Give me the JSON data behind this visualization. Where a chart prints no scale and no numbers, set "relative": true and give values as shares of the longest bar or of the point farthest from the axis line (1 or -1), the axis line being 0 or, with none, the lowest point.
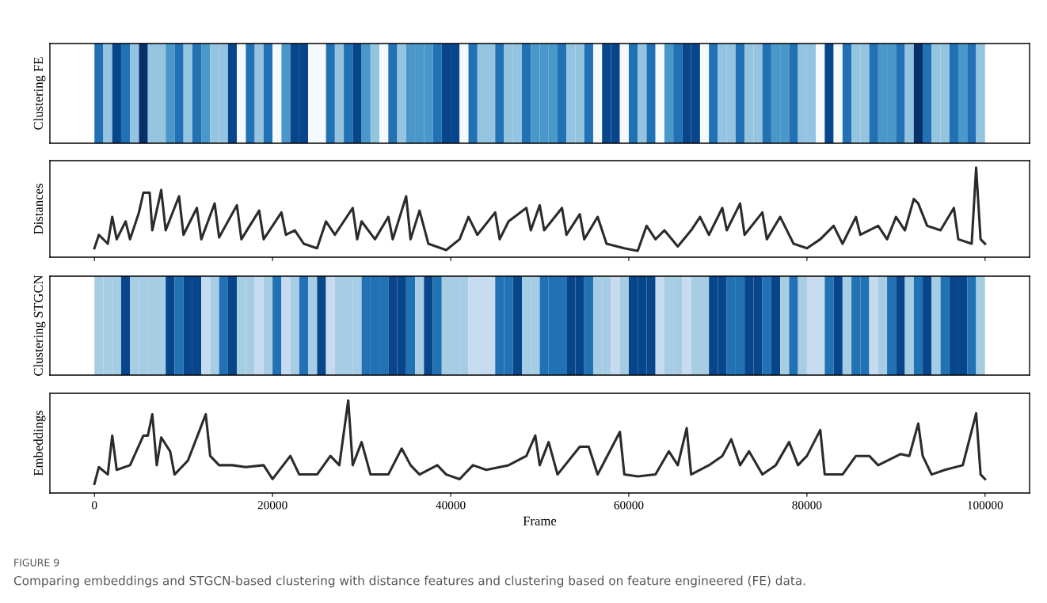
{
  "chart_data": [
    {
      "type": "bar",
      "ylabel": "Clustering FE",
      "relative": true,
      "tick_labels": false,
      "categories": [
        null,
        null,
        null,
        null,
        null,
        null,
        null,
        null,
        null,
        null,
        null,
        null,
        null,
        null,
        null,
        null,
        null,
        null,
        null,
        null,
        null,
        null,
        null,
        null,
        null,
        null,
        null,
        null,
        null,
        null,
        null,
        null,
        null,
        null,
        null,
        null,
        null,
        null,
        null,
        null,
        null,
        null,
        null,
        null,
        null,
        null,
        null,
        null,
        null,
        null,
        null,
        null,
        null,
        null,
        null,
        null,
        null,
        null,
        null,
        null,
        null,
        null,
        null,
        null,
        null,
        null,
        null,
        null,
        null,
        null,
        null,
        null,
        null,
        null,
        null,
        null,
        null,
        null,
        null,
        null,
        null,
        null,
        null,
        null,
        null,
        null,
        null,
        null,
        null,
        null,
        null,
        null,
        null,
        null,
        null,
        null,
        null,
        null,
        null,
        null
      ],
      "values": [
        1,
        1,
        1,
        1,
        1,
        1,
        1,
        1,
        1,
        1,
        1,
        1,
        1,
        1,
        1,
        1,
        1,
        1,
        1,
        1,
        1,
        1,
        1,
        1,
        1,
        1,
        1,
        1,
        1,
        1,
        1,
        1,
        1,
        1,
        1,
        1,
        1,
        1,
        1,
        1,
        1,
        1,
        1,
        1,
        1,
        1,
        1,
        1,
        1,
        1,
        1,
        1,
        1,
        1,
        1,
        1,
        1,
        1,
        1,
        1,
        1,
        1,
        1,
        1,
        1,
        1,
        1,
        1,
        1,
        1,
        1,
        1,
        1,
        1,
        1,
        1,
        1,
        1,
        1,
        1,
        1,
        1,
        1,
        1,
        1,
        1,
        1,
        1,
        1,
        1,
        1,
        1,
        1,
        1,
        1,
        1,
        1,
        1,
        1,
        1
      ],
      "colors": [
        "#2171b5",
        "#94c4df",
        "#08468c",
        "#2171b5",
        "#94c4df",
        "#08306b",
        "#94c4df",
        "#94c4df",
        "#4a98c9",
        "#2171b5",
        "#94c4df",
        "#2171b5",
        "#4a98c9",
        "#94c4df",
        "#94c4df",
        "#08468c",
        "#f4f9fd",
        "#2171b5",
        "#94c4df",
        "#2171b5",
        "#f4f9fd",
        "#4a98c9",
        "#08468c",
        "#08468c",
        "#f4f9fd",
        "#f4f9fd",
        "#2171b5",
        "#94c4df",
        "#2171b5",
        "#08468c",
        "#4a98c9",
        "#94c4df",
        "#f4f9fd",
        "#2171b5",
        "#94c4df",
        "#4a98c9",
        "#4a98c9",
        "#4a98c9",
        "#2171b5",
        "#08468c",
        "#08468c",
        "#f4f9fd",
        "#2171b5",
        "#94c4df",
        "#94c4df",
        "#2171b5",
        "#94c4df",
        "#94c4df",
        "#2171b5",
        "#4a98c9",
        "#4a98c9",
        "#4a98c9",
        "#2171b5",
        "#94c4df",
        "#94c4df",
        "#2171b5",
        "#f4f9fd",
        "#08468c",
        "#08468c",
        "#f4f9fd",
        "#2171b5",
        "#94c4df",
        "#2171b5",
        "#f4f9fd",
        "#4a98c9",
        "#2171b5",
        "#08468c",
        "#08468c",
        "#f4f9fd",
        "#2171b5",
        "#94c4df",
        "#94c4df",
        "#2171b5",
        "#94c4df",
        "#94c4df",
        "#2171b5",
        "#4a98c9",
        "#4a98c9",
        "#2171b5",
        "#94c4df",
        "#94c4df",
        "#f4f9fd",
        "#08468c",
        "#f4f9fd",
        "#2171b5",
        "#94c4df",
        "#94c4df",
        "#2171b5",
        "#4a98c9",
        "#4a98c9",
        "#2171b5",
        "#94c4df",
        "#08306b",
        "#2171b5",
        "#94c4df",
        "#94c4df",
        "#2171b5",
        "#4a98c9",
        "#2171b5",
        "#94c4df"
      ]
    },
    {
      "type": "line",
      "ylabel": "Distances",
      "relative": true,
      "xlim": [
        -5000,
        105000
      ],
      "xticks": [
        0,
        20000,
        40000,
        60000,
        80000,
        100000
      ],
      "tick_labels": false,
      "series": [
        {
          "color": "#2b2b2b",
          "x": [
            0,
            500,
            1500,
            2000,
            2500,
            3500,
            4000,
            5000,
            5500,
            6200,
            6500,
            7500,
            8000,
            9500,
            10000,
            11500,
            12000,
            13500,
            14000,
            16000,
            16500,
            18500,
            19000,
            21000,
            21500,
            22500,
            23500,
            25000,
            26000,
            27000,
            29000,
            29500,
            30000,
            31500,
            33000,
            33500,
            35000,
            35500,
            36500,
            37500,
            39500,
            41000,
            42000,
            43000,
            45000,
            45500,
            46500,
            48500,
            49000,
            50000,
            50500,
            52500,
            53000,
            54500,
            55000,
            56500,
            57500,
            59500,
            61000,
            62000,
            63000,
            64000,
            65500,
            67000,
            68000,
            69000,
            70500,
            71000,
            72500,
            73000,
            75000,
            75500,
            77000,
            78500,
            80000,
            81500,
            83000,
            84000,
            85500,
            86000,
            88000,
            89000,
            90000,
            91000,
            92000,
            92500,
            93500,
            95000,
            96500,
            97000,
            98500,
            99000,
            99500,
            100000
          ],
          "values": [
            0.1,
            0.25,
            0.15,
            0.45,
            0.2,
            0.4,
            0.2,
            0.5,
            0.72,
            0.72,
            0.3,
            0.75,
            0.3,
            0.68,
            0.25,
            0.55,
            0.2,
            0.6,
            0.22,
            0.58,
            0.2,
            0.52,
            0.2,
            0.5,
            0.25,
            0.3,
            0.15,
            0.1,
            0.4,
            0.25,
            0.55,
            0.2,
            0.4,
            0.2,
            0.45,
            0.2,
            0.68,
            0.2,
            0.52,
            0.15,
            0.08,
            0.2,
            0.45,
            0.25,
            0.5,
            0.2,
            0.4,
            0.55,
            0.3,
            0.58,
            0.3,
            0.55,
            0.25,
            0.48,
            0.2,
            0.45,
            0.15,
            0.1,
            0.07,
            0.35,
            0.2,
            0.3,
            0.12,
            0.3,
            0.45,
            0.25,
            0.55,
            0.3,
            0.6,
            0.25,
            0.5,
            0.2,
            0.45,
            0.15,
            0.1,
            0.2,
            0.35,
            0.15,
            0.45,
            0.25,
            0.35,
            0.2,
            0.45,
            0.3,
            0.65,
            0.6,
            0.35,
            0.3,
            0.55,
            0.2,
            0.15,
            1.0,
            0.2,
            0.15
          ]
        }
      ]
    },
    {
      "type": "bar",
      "ylabel": "Clustering STGCN",
      "relative": true,
      "tick_labels": false,
      "categories": [
        null,
        null,
        null,
        null,
        null,
        null,
        null,
        null,
        null,
        null,
        null,
        null,
        null,
        null,
        null,
        null,
        null,
        null,
        null,
        null,
        null,
        null,
        null,
        null,
        null,
        null,
        null,
        null,
        null,
        null,
        null,
        null,
        null,
        null,
        null,
        null,
        null,
        null,
        null,
        null,
        null,
        null,
        null,
        null,
        null,
        null,
        null,
        null,
        null,
        null,
        null,
        null,
        null,
        null,
        null,
        null,
        null,
        null,
        null,
        null,
        null,
        null,
        null,
        null,
        null,
        null,
        null,
        null,
        null,
        null,
        null,
        null,
        null,
        null,
        null,
        null,
        null,
        null,
        null,
        null,
        null,
        null,
        null,
        null,
        null,
        null,
        null,
        null,
        null,
        null,
        null,
        null,
        null,
        null,
        null,
        null,
        null,
        null,
        null,
        null
      ],
      "values": [
        1,
        1,
        1,
        1,
        1,
        1,
        1,
        1,
        1,
        1,
        1,
        1,
        1,
        1,
        1,
        1,
        1,
        1,
        1,
        1,
        1,
        1,
        1,
        1,
        1,
        1,
        1,
        1,
        1,
        1,
        1,
        1,
        1,
        1,
        1,
        1,
        1,
        1,
        1,
        1,
        1,
        1,
        1,
        1,
        1,
        1,
        1,
        1,
        1,
        1,
        1,
        1,
        1,
        1,
        1,
        1,
        1,
        1,
        1,
        1,
        1,
        1,
        1,
        1,
        1,
        1,
        1,
        1,
        1,
        1,
        1,
        1,
        1,
        1,
        1,
        1,
        1,
        1,
        1,
        1,
        1,
        1,
        1,
        1,
        1,
        1,
        1,
        1,
        1,
        1,
        1,
        1,
        1,
        1,
        1,
        1,
        1,
        1,
        1,
        1
      ],
      "colors": [
        "#a6cde4",
        "#a6cde4",
        "#a6cde4",
        "#08468c",
        "#a6cde4",
        "#a6cde4",
        "#a6cde4",
        "#a6cde4",
        "#08468c",
        "#2171b5",
        "#08468c",
        "#08468c",
        "#c6dbef",
        "#a6cde4",
        "#2171b5",
        "#08468c",
        "#a6cde4",
        "#a6cde4",
        "#c6dbef",
        "#a6cde4",
        "#2171b5",
        "#c6dbef",
        "#a6cde4",
        "#2171b5",
        "#a6cde4",
        "#08468c",
        "#c6dbef",
        "#a6cde4",
        "#a6cde4",
        "#a6cde4",
        "#2171b5",
        "#2171b5",
        "#2171b5",
        "#08468c",
        "#08468c",
        "#2171b5",
        "#a6cde4",
        "#08468c",
        "#2171b5",
        "#a6cde4",
        "#a6cde4",
        "#a6cde4",
        "#c6dbef",
        "#c6dbef",
        "#c6dbef",
        "#2171b5",
        "#2171b5",
        "#08468c",
        "#a6cde4",
        "#a6cde4",
        "#2171b5",
        "#2171b5",
        "#2171b5",
        "#08468c",
        "#08468c",
        "#2171b5",
        "#a6cde4",
        "#a6cde4",
        "#c6dbef",
        "#a6cde4",
        "#08468c",
        "#08468c",
        "#08468c",
        "#c6dbef",
        "#a6cde4",
        "#a6cde4",
        "#c6dbef",
        "#a6cde4",
        "#a6cde4",
        "#08468c",
        "#08468c",
        "#2171b5",
        "#2171b5",
        "#08468c",
        "#08468c",
        "#2171b5",
        "#08468c",
        "#a6cde4",
        "#2171b5",
        "#a6cde4",
        "#c6dbef",
        "#c6dbef",
        "#2171b5",
        "#08468c",
        "#a6cde4",
        "#2171b5",
        "#2171b5",
        "#c6dbef",
        "#a6cde4",
        "#2171b5",
        "#08468c",
        "#a6cde4",
        "#2171b5",
        "#08468c",
        "#a6cde4",
        "#2171b5",
        "#08468c",
        "#08468c",
        "#2171b5",
        "#a6cde4"
      ]
    },
    {
      "type": "line",
      "ylabel": "Embeddings",
      "xlabel": "Frame",
      "relative": true,
      "xlim": [
        -5000,
        105000
      ],
      "xticks": [
        0,
        20000,
        40000,
        60000,
        80000,
        100000
      ],
      "tick_labels": "x",
      "annotations": [
        "FIGURE 9",
        "Comparing embeddings and STGCN-based clustering with distance features and clustering based on feature engineered (FE) data."
      ],
      "series": [
        {
          "color": "#2b2b2b",
          "x": [
            0,
            500,
            1500,
            2000,
            2500,
            4000,
            5500,
            6000,
            6500,
            7000,
            7500,
            8500,
            9000,
            10500,
            12500,
            13000,
            14000,
            15500,
            17000,
            19000,
            20000,
            22000,
            23000,
            25000,
            26500,
            27500,
            28500,
            29000,
            30000,
            31000,
            33000,
            34500,
            35500,
            36500,
            38500,
            39500,
            41000,
            42500,
            44000,
            46500,
            48500,
            49500,
            50000,
            51000,
            52000,
            54500,
            55500,
            56500,
            59000,
            59500,
            61000,
            63000,
            64500,
            65500,
            66500,
            67000,
            69000,
            70500,
            71500,
            72500,
            73500,
            75000,
            76500,
            78000,
            79000,
            80000,
            81500,
            82000,
            84000,
            85500,
            87000,
            88000,
            90500,
            91500,
            92500,
            93000,
            94000,
            95500,
            97500,
            99000,
            99500,
            100000
          ],
          "values": [
            0.1,
            0.28,
            0.2,
            0.62,
            0.25,
            0.3,
            0.62,
            0.62,
            0.85,
            0.3,
            0.6,
            0.45,
            0.2,
            0.35,
            0.85,
            0.4,
            0.3,
            0.3,
            0.28,
            0.3,
            0.15,
            0.4,
            0.2,
            0.2,
            0.4,
            0.3,
            1.0,
            0.3,
            0.55,
            0.2,
            0.2,
            0.48,
            0.3,
            0.2,
            0.3,
            0.2,
            0.15,
            0.3,
            0.25,
            0.3,
            0.4,
            0.62,
            0.3,
            0.55,
            0.2,
            0.5,
            0.5,
            0.2,
            0.66,
            0.2,
            0.18,
            0.2,
            0.45,
            0.3,
            0.7,
            0.2,
            0.3,
            0.4,
            0.58,
            0.3,
            0.45,
            0.2,
            0.3,
            0.55,
            0.3,
            0.4,
            0.68,
            0.2,
            0.2,
            0.4,
            0.4,
            0.3,
            0.42,
            0.4,
            0.75,
            0.4,
            0.2,
            0.25,
            0.3,
            0.86,
            0.2,
            0.15
          ]
        }
      ]
    }
  ]
}
